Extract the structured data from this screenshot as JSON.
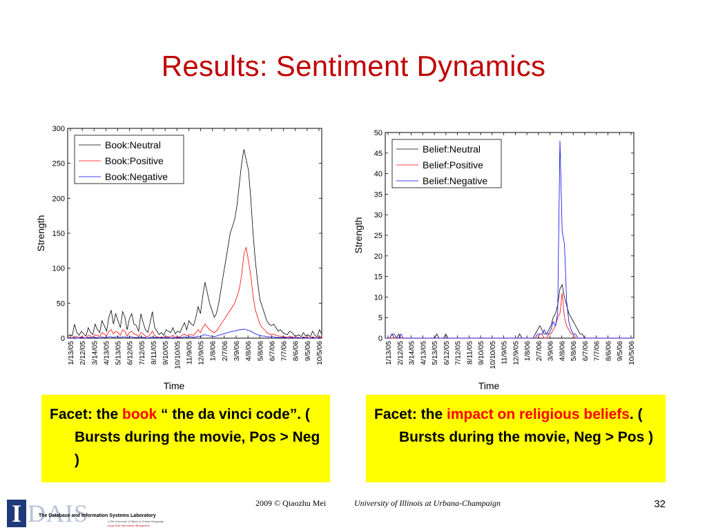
{
  "slide": {
    "title": "Results: Sentiment Dynamics",
    "footer_left": "2009 © Qiaozhu Mei",
    "footer_right": "University of Illinois at Urbana-Champaign",
    "page_number": "32",
    "logo": {
      "letter": "I",
      "name": "DAIS",
      "lab": "The Database and Information Systems Laboratory",
      "sub": "at The University of Illinois at Urbana-Champaign",
      "sub2": "Large Scale Information Management"
    }
  },
  "captions": [
    {
      "prefix": "Facet: the ",
      "highlight": "book",
      "suffix": " “ the da vinci code”. ( Bursts during the movie, Pos > Neg )"
    },
    {
      "prefix": "Facet: the ",
      "highlight": "impact on religious beliefs",
      "suffix": ". ( Bursts during the movie, Neg > Pos )"
    }
  ],
  "colors": {
    "title": "#c00000",
    "caption_bg": "#ffff00",
    "highlight": "#ff0000",
    "neutral": "#000000",
    "positive": "#ff0000",
    "negative": "#0000ff"
  },
  "chart_data": [
    {
      "type": "line",
      "xlabel": "Time",
      "ylabel": "Strength",
      "ylim": [
        0,
        300
      ],
      "yticks": [
        0,
        50,
        100,
        150,
        200,
        250,
        300
      ],
      "xticks": [
        "1/13/05",
        "2/12/05",
        "3/14/05",
        "4/13/05",
        "5/13/05",
        "6/12/05",
        "7/12/05",
        "8/11/05",
        "9/10/05",
        "10/10/05",
        "11/9/05",
        "12/9/05",
        "1/8/06",
        "2/7/06",
        "3/9/06",
        "4/8/06",
        "5/8/06",
        "6/7/06",
        "7/7/06",
        "8/6/06",
        "9/5/06",
        "10/5/06"
      ],
      "legend_position": "top-left",
      "series": [
        {
          "name": "Book:Neutral",
          "color": "#000000",
          "values": [
            2,
            5,
            3,
            20,
            8,
            4,
            10,
            6,
            3,
            15,
            8,
            5,
            20,
            12,
            8,
            25,
            18,
            10,
            30,
            40,
            20,
            35,
            25,
            15,
            38,
            30,
            12,
            28,
            35,
            20,
            18,
            10,
            35,
            22,
            12,
            8,
            22,
            38,
            15,
            10,
            5,
            8,
            4,
            12,
            10,
            8,
            15,
            6,
            10,
            8,
            15,
            22,
            12,
            25,
            20,
            18,
            30,
            45,
            35,
            60,
            80,
            65,
            50,
            40,
            30,
            35,
            50,
            70,
            90,
            110,
            130,
            150,
            160,
            170,
            190,
            220,
            250,
            270,
            255,
            240,
            200,
            150,
            110,
            80,
            55,
            45,
            35,
            25,
            20,
            18,
            20,
            15,
            10,
            12,
            8,
            6,
            5,
            10,
            8,
            4,
            3,
            5,
            2,
            8,
            3,
            5,
            2,
            10,
            4,
            2,
            12,
            6
          ]
        },
        {
          "name": "Book:Positive",
          "color": "#ff0000",
          "values": [
            0,
            1,
            0,
            3,
            2,
            1,
            2,
            1,
            0,
            4,
            3,
            1,
            5,
            4,
            2,
            8,
            6,
            3,
            10,
            12,
            6,
            10,
            8,
            4,
            12,
            10,
            3,
            8,
            10,
            6,
            5,
            2,
            8,
            6,
            3,
            2,
            5,
            10,
            4,
            2,
            1,
            2,
            1,
            3,
            2,
            2,
            4,
            1,
            2,
            2,
            4,
            6,
            3,
            5,
            5,
            4,
            8,
            12,
            8,
            15,
            20,
            16,
            12,
            10,
            8,
            10,
            15,
            20,
            25,
            30,
            35,
            40,
            45,
            50,
            60,
            70,
            90,
            120,
            130,
            110,
            90,
            60,
            40,
            30,
            20,
            15,
            12,
            8,
            6,
            5,
            6,
            4,
            3,
            3,
            2,
            2,
            1,
            3,
            2,
            1,
            1,
            1,
            0,
            2,
            1,
            1,
            0,
            2,
            1,
            0,
            3,
            1
          ]
        },
        {
          "name": "Book:Negative",
          "color": "#0000ff",
          "values": [
            0,
            0,
            0,
            1,
            0,
            0,
            1,
            0,
            0,
            1,
            1,
            0,
            1,
            1,
            0,
            2,
            1,
            1,
            2,
            2,
            1,
            2,
            2,
            1,
            2,
            2,
            1,
            2,
            2,
            1,
            1,
            1,
            2,
            1,
            1,
            0,
            1,
            2,
            1,
            1,
            0,
            1,
            0,
            1,
            1,
            0,
            1,
            0,
            1,
            1,
            1,
            2,
            1,
            2,
            2,
            1,
            2,
            3,
            2,
            4,
            5,
            4,
            3,
            3,
            2,
            3,
            4,
            5,
            6,
            7,
            8,
            9,
            10,
            10,
            11,
            12,
            12,
            13,
            12,
            11,
            10,
            8,
            6,
            5,
            4,
            3,
            3,
            2,
            2,
            2,
            2,
            1,
            1,
            1,
            1,
            1,
            0,
            1,
            1,
            0,
            0,
            1,
            0,
            1,
            0,
            0,
            0,
            1,
            0,
            0,
            1,
            0
          ]
        }
      ]
    },
    {
      "type": "line",
      "xlabel": "Time",
      "ylabel": "Strength",
      "ylim": [
        0,
        50
      ],
      "yticks": [
        0,
        5,
        10,
        15,
        20,
        25,
        30,
        35,
        40,
        45,
        50
      ],
      "xticks": [
        "1/13/05",
        "2/12/05",
        "3/14/05",
        "4/13/05",
        "5/13/05",
        "6/12/05",
        "7/12/05",
        "8/11/05",
        "9/10/05",
        "10/10/05",
        "11/9/05",
        "12/9/05",
        "1/8/06",
        "2/7/06",
        "3/9/06",
        "4/8/06",
        "5/8/06",
        "6/7/06",
        "7/7/06",
        "8/6/06",
        "9/5/06",
        "10/5/06"
      ],
      "legend_position": "top-left",
      "series": [
        {
          "name": "Belief:Neutral",
          "color": "#000000",
          "values": [
            0,
            0,
            0,
            1,
            0,
            0,
            1,
            0,
            0,
            0,
            0,
            0,
            0,
            0,
            0,
            0,
            0,
            0,
            0,
            0,
            0,
            0,
            0,
            1,
            0,
            0,
            0,
            1,
            0,
            0,
            0,
            0,
            0,
            0,
            0,
            0,
            0,
            0,
            0,
            0,
            0,
            0,
            0,
            0,
            0,
            0,
            0,
            0,
            0,
            0,
            0,
            0,
            0,
            0,
            0,
            0,
            0,
            0,
            0,
            0,
            1,
            0,
            0,
            0,
            0,
            0,
            0,
            1,
            2,
            3,
            2,
            1,
            1,
            2,
            3,
            5,
            6,
            8,
            12,
            13,
            10,
            8,
            6,
            5,
            4,
            3,
            2,
            1,
            1,
            0,
            0,
            0,
            0,
            0,
            0,
            0,
            0,
            0,
            0,
            0,
            0,
            0,
            0,
            0,
            0,
            0,
            0,
            0,
            0,
            0,
            0,
            0
          ]
        },
        {
          "name": "Belief:Positive",
          "color": "#ff0000",
          "values": [
            0,
            0,
            0,
            0,
            0,
            0,
            0,
            0,
            0,
            0,
            0,
            0,
            0,
            0,
            0,
            0,
            0,
            0,
            0,
            0,
            0,
            0,
            0,
            0,
            0,
            0,
            0,
            0,
            0,
            0,
            0,
            0,
            0,
            0,
            0,
            0,
            0,
            0,
            0,
            0,
            0,
            0,
            0,
            0,
            0,
            0,
            0,
            0,
            0,
            0,
            0,
            0,
            0,
            0,
            0,
            0,
            0,
            0,
            0,
            0,
            0,
            0,
            0,
            0,
            0,
            0,
            0,
            0,
            0,
            1,
            1,
            0,
            0,
            1,
            1,
            2,
            3,
            5,
            6,
            11,
            5,
            3,
            2,
            1,
            1,
            0,
            0,
            0,
            0,
            0,
            0,
            0,
            0,
            0,
            0,
            0,
            0,
            0,
            0,
            0,
            0,
            0,
            0,
            0,
            0,
            0,
            0,
            0,
            0,
            0,
            0,
            0
          ]
        },
        {
          "name": "Belief:Negative",
          "color": "#0000ff",
          "values": [
            0,
            0,
            0,
            1,
            1,
            0,
            0,
            1,
            0,
            0,
            0,
            0,
            0,
            0,
            0,
            0,
            0,
            0,
            0,
            0,
            0,
            0,
            0,
            0,
            0,
            0,
            0,
            0,
            0,
            0,
            0,
            0,
            0,
            0,
            0,
            0,
            0,
            0,
            0,
            0,
            0,
            0,
            0,
            0,
            0,
            0,
            0,
            0,
            0,
            0,
            0,
            0,
            0,
            0,
            0,
            0,
            0,
            0,
            0,
            0,
            0,
            0,
            0,
            0,
            0,
            0,
            0,
            0,
            1,
            1,
            1,
            2,
            1,
            1,
            2,
            4,
            3,
            6,
            48,
            26,
            23,
            9,
            4,
            2,
            1,
            1,
            0,
            0,
            0,
            0,
            0,
            0,
            0,
            0,
            0,
            0,
            0,
            0,
            0,
            0,
            0,
            0,
            0,
            0,
            0,
            0,
            0,
            0,
            0,
            0,
            0,
            0
          ]
        }
      ]
    }
  ]
}
